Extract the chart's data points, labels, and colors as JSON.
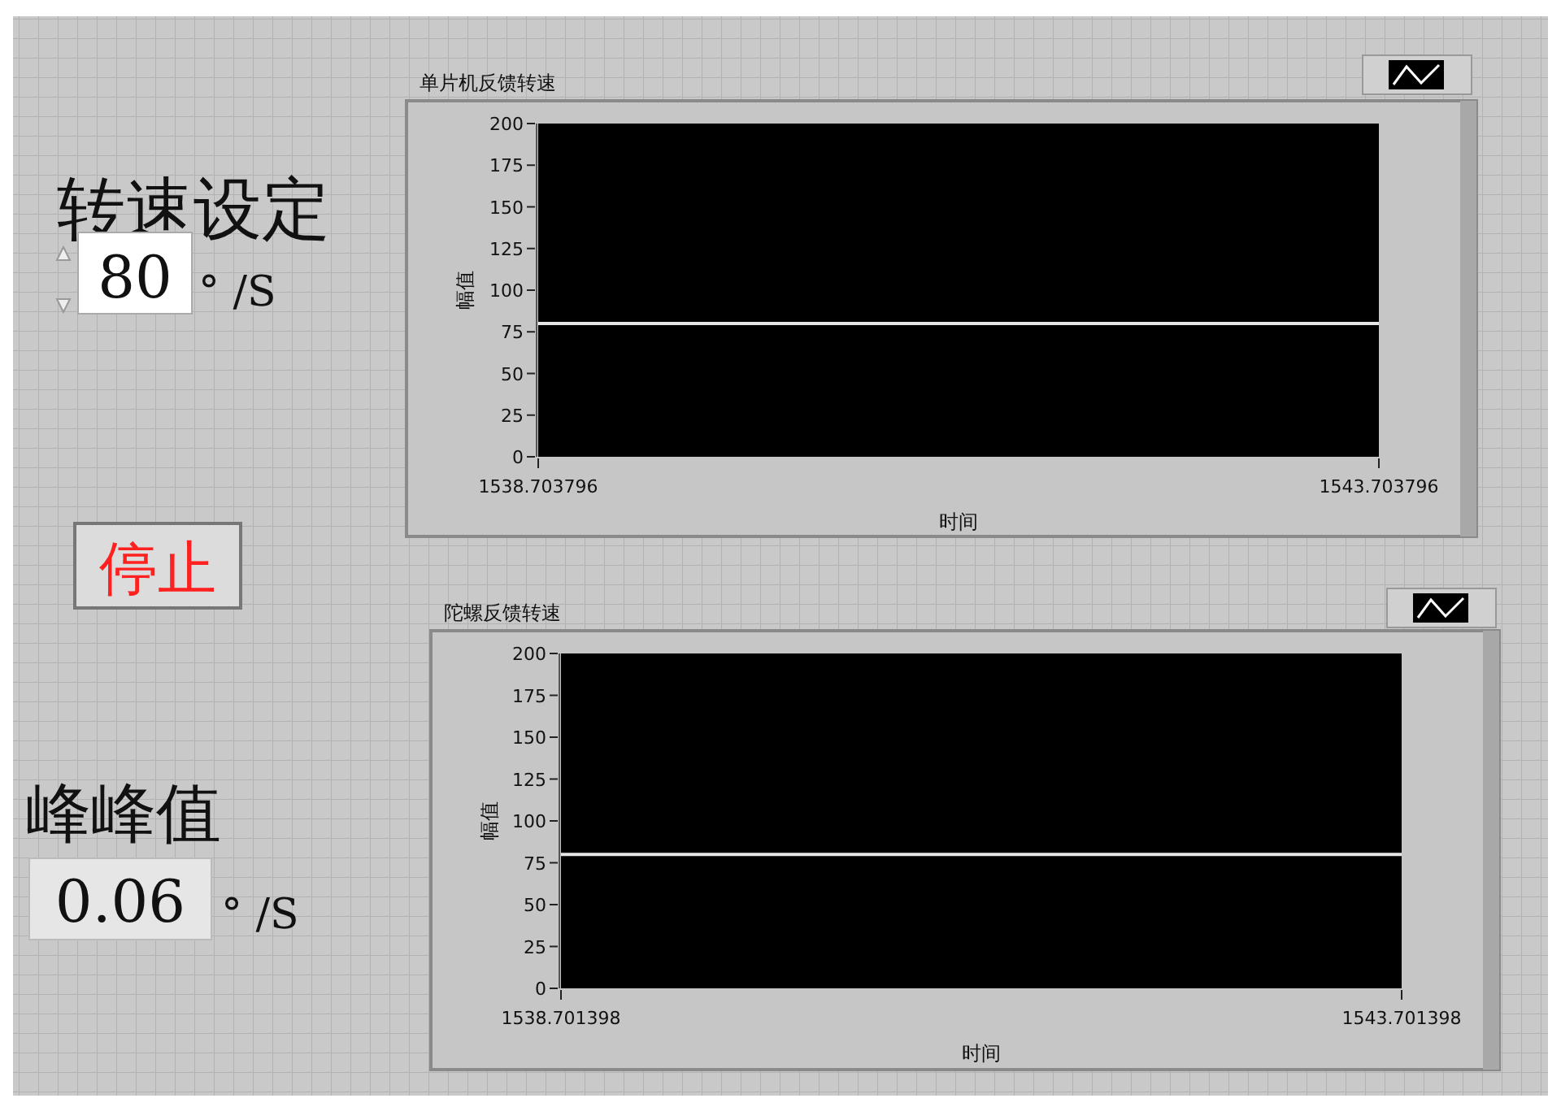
{
  "chart_data": [
    {
      "type": "other",
      "title": "转速设定",
      "annotations": [
        "80",
        "° /S",
        "停止",
        "峰峰值",
        "0.06",
        "° /S"
      ]
    },
    {
      "type": "line",
      "title": "单片机反馈转速",
      "xlabel": "时间",
      "ylabel": "幅值",
      "xlim": [
        1538.703796,
        1543.703796
      ],
      "xticks": [
        1538.703796,
        1543.703796
      ],
      "ylim": [
        0,
        200
      ],
      "yticks": [
        0,
        25,
        50,
        75,
        100,
        125,
        150,
        175,
        200
      ],
      "series": [
        {
          "color": "#e6e6e6",
          "x": [
            1538.703796,
            1543.703796
          ],
          "values": [
            80,
            80
          ]
        }
      ]
    },
    {
      "type": "line",
      "title": "陀螺反馈转速",
      "xlabel": "时间",
      "ylabel": "幅值",
      "xlim": [
        1538.701398,
        1543.701398
      ],
      "xticks": [
        1538.701398,
        1543.701398
      ],
      "ylim": [
        0,
        200
      ],
      "yticks": [
        0,
        25,
        50,
        75,
        100,
        125,
        150,
        175,
        200
      ],
      "series": [
        {
          "color": "#e6e6e6",
          "x": [
            1538.701398,
            1543.701398
          ],
          "values": [
            80,
            80
          ]
        }
      ]
    }
  ]
}
